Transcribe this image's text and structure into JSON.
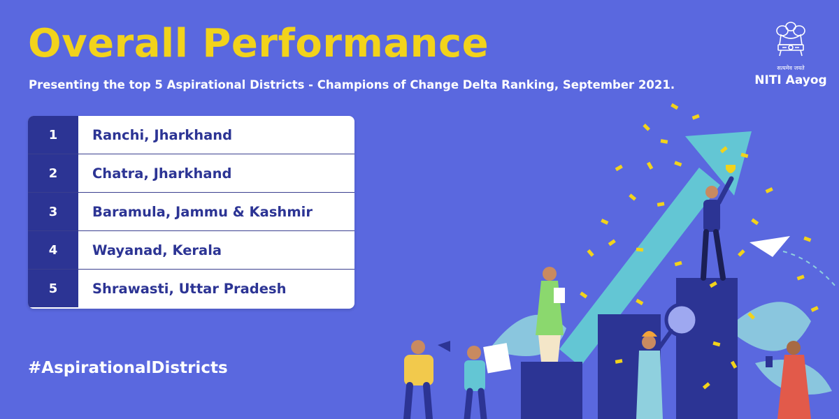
{
  "header": {
    "title": "Overall Performance",
    "subtitle": "Presenting the top 5 Aspirational Districts - Champions of Change Delta Ranking, September 2021."
  },
  "logo": {
    "motto": "सत्यमेव जयते",
    "org": "NITI Aayog"
  },
  "ranking": [
    {
      "rank": "1",
      "district": "Ranchi, Jharkhand"
    },
    {
      "rank": "2",
      "district": "Chatra, Jharkhand"
    },
    {
      "rank": "3",
      "district": "Baramula, Jammu & Kashmir"
    },
    {
      "rank": "4",
      "district": "Wayanad, Kerala"
    },
    {
      "rank": "5",
      "district": "Shrawasti, Uttar Pradesh"
    }
  ],
  "hashtag": "#AspirationalDistricts",
  "colors": {
    "background": "#5a68df",
    "title": "#f2d31b",
    "rank_cell": "#2c3494",
    "district_text": "#2c3494",
    "arrow": "#63c6d4",
    "confetti": "#f2d31b"
  }
}
